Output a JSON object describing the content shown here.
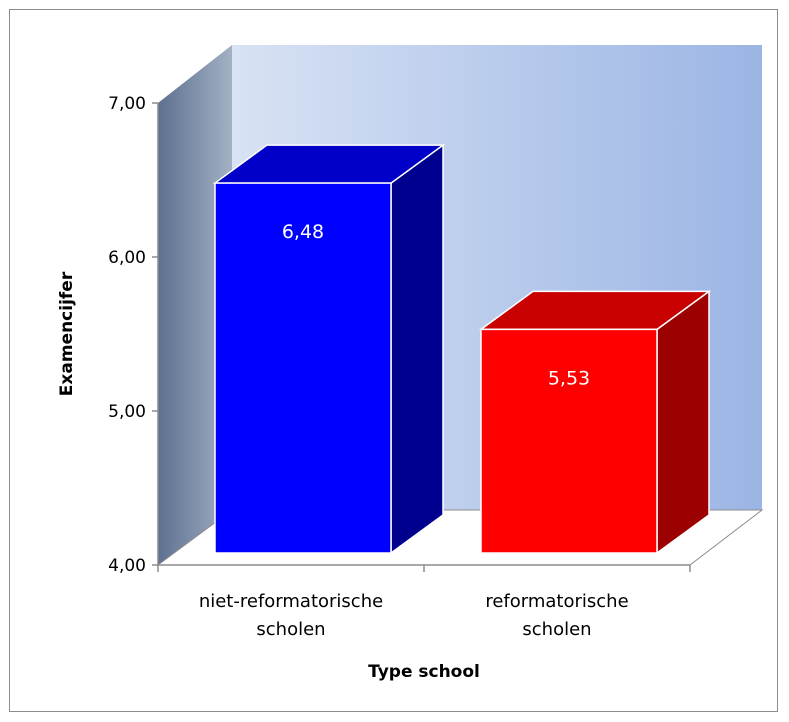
{
  "chart_data": {
    "type": "bar",
    "style": "3d-column",
    "categories": [
      [
        "niet-reformatorische",
        "scholen"
      ],
      [
        "reformatorische",
        "scholen"
      ]
    ],
    "values": [
      6.48,
      5.53
    ],
    "data_labels": [
      "6,48",
      "5,53"
    ],
    "bar_colors": [
      "#0000ff",
      "#ff0000"
    ],
    "bar_top_colors": [
      "#0000c8",
      "#c80000"
    ],
    "bar_side_colors": [
      "#00008f",
      "#9c0000"
    ],
    "xlabel": "Type school",
    "ylabel": "Examencijfer",
    "ylim": [
      4,
      7
    ],
    "yticks": [
      4,
      5,
      6,
      7
    ],
    "ytick_labels": [
      "4,00",
      "5,00",
      "6,00",
      "7,00"
    ],
    "legend": "none",
    "grid": false,
    "back_wall_gradient": [
      "#d8e2f4",
      "#9bb5e4"
    ],
    "side_wall_gradient": [
      "#5d7090",
      "#a3b1c4"
    ]
  }
}
